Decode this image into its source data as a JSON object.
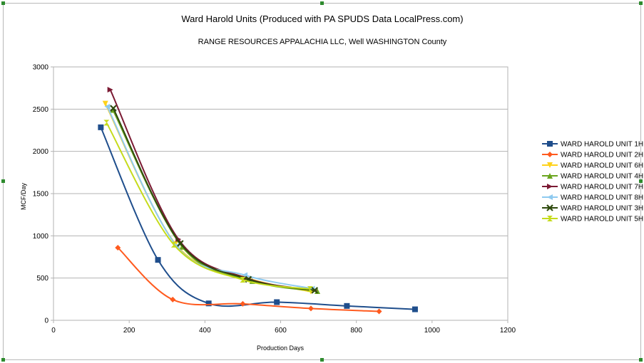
{
  "chart_data": {
    "type": "line",
    "title": "Ward Harold Units (Produced with PA SPUDS Data LocalPress.com)",
    "subtitle": "RANGE RESOURCES APPALACHIA LLC, Well  WASHINGTON County",
    "xlabel": "Production Days",
    "ylabel": "MCF/Day",
    "xlim": [
      0,
      1200
    ],
    "ylim": [
      0,
      3000
    ],
    "xticks": [
      0,
      200,
      400,
      600,
      800,
      1000,
      1200
    ],
    "yticks": [
      0,
      500,
      1000,
      1500,
      2000,
      2500,
      3000
    ],
    "grid": "horizontal",
    "legend": "right",
    "series": [
      {
        "name": "WARD HAROLD UNIT 1H",
        "color": "#1f4e8c",
        "marker": "square",
        "x": [
          125,
          276,
          410,
          590,
          775,
          955
        ],
        "y": [
          2285,
          715,
          200,
          215,
          170,
          130
        ]
      },
      {
        "name": "WARD HAROLD UNIT 2H",
        "color": "#ff5a1e",
        "marker": "diamond",
        "x": [
          170,
          315,
          500,
          680,
          860
        ],
        "y": [
          860,
          245,
          195,
          140,
          105
        ]
      },
      {
        "name": "WARD HAROLD UNIT 6H",
        "color": "#ffd21a",
        "marker": "triangle-down",
        "x": [
          137,
          322,
          505,
          680
        ],
        "y": [
          2565,
          905,
          510,
          340
        ]
      },
      {
        "name": "WARD HAROLD UNIT 4H",
        "color": "#6aa51e",
        "marker": "triangle-up",
        "x": [
          157,
          340,
          525,
          697
        ],
        "y": [
          2490,
          870,
          465,
          345
        ]
      },
      {
        "name": "WARD HAROLD UNIT 7H",
        "color": "#7b1a33",
        "marker": "triangle-right",
        "x": [
          150,
          330,
          510,
          690
        ],
        "y": [
          2730,
          960,
          500,
          355
        ]
      },
      {
        "name": "WARD HAROLD UNIT 8H",
        "color": "#8ecaf0",
        "marker": "triangle-left",
        "x": [
          142,
          325,
          505,
          683
        ],
        "y": [
          2530,
          880,
          535,
          375
        ]
      },
      {
        "name": "WARD HAROLD UNIT 3H",
        "color": "#2f4a0e",
        "marker": "x",
        "x": [
          158,
          335,
          515,
          690
        ],
        "y": [
          2510,
          910,
          485,
          355
        ]
      },
      {
        "name": "WARD HAROLD UNIT 5H",
        "color": "#c5db1a",
        "marker": "hourglass",
        "x": [
          140,
          318,
          500,
          678
        ],
        "y": [
          2340,
          895,
          480,
          370
        ]
      }
    ]
  }
}
